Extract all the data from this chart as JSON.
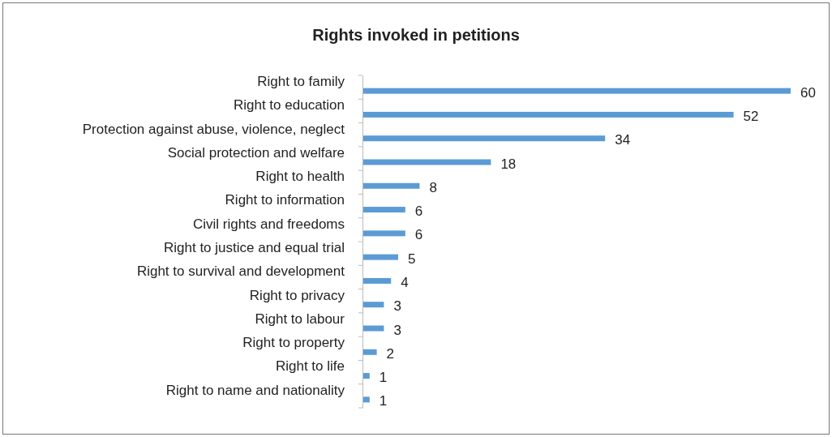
{
  "chart_data": {
    "type": "bar",
    "orientation": "horizontal",
    "title": "Rights invoked in petitions",
    "categories": [
      "Right to family",
      "Right to education",
      "Protection against abuse, violence, neglect",
      "Social protection and welfare",
      "Right to health",
      "Right to information",
      "Civil rights and freedoms",
      "Right to justice and equal trial",
      "Right to survival and development",
      "Right to privacy",
      "Right to labour",
      "Right to property",
      "Right to life",
      "Right to name and nationality"
    ],
    "values": [
      60,
      52,
      34,
      18,
      8,
      6,
      6,
      5,
      4,
      3,
      3,
      2,
      1,
      1
    ],
    "color": "#5b9bd5",
    "data_labels": true
  }
}
